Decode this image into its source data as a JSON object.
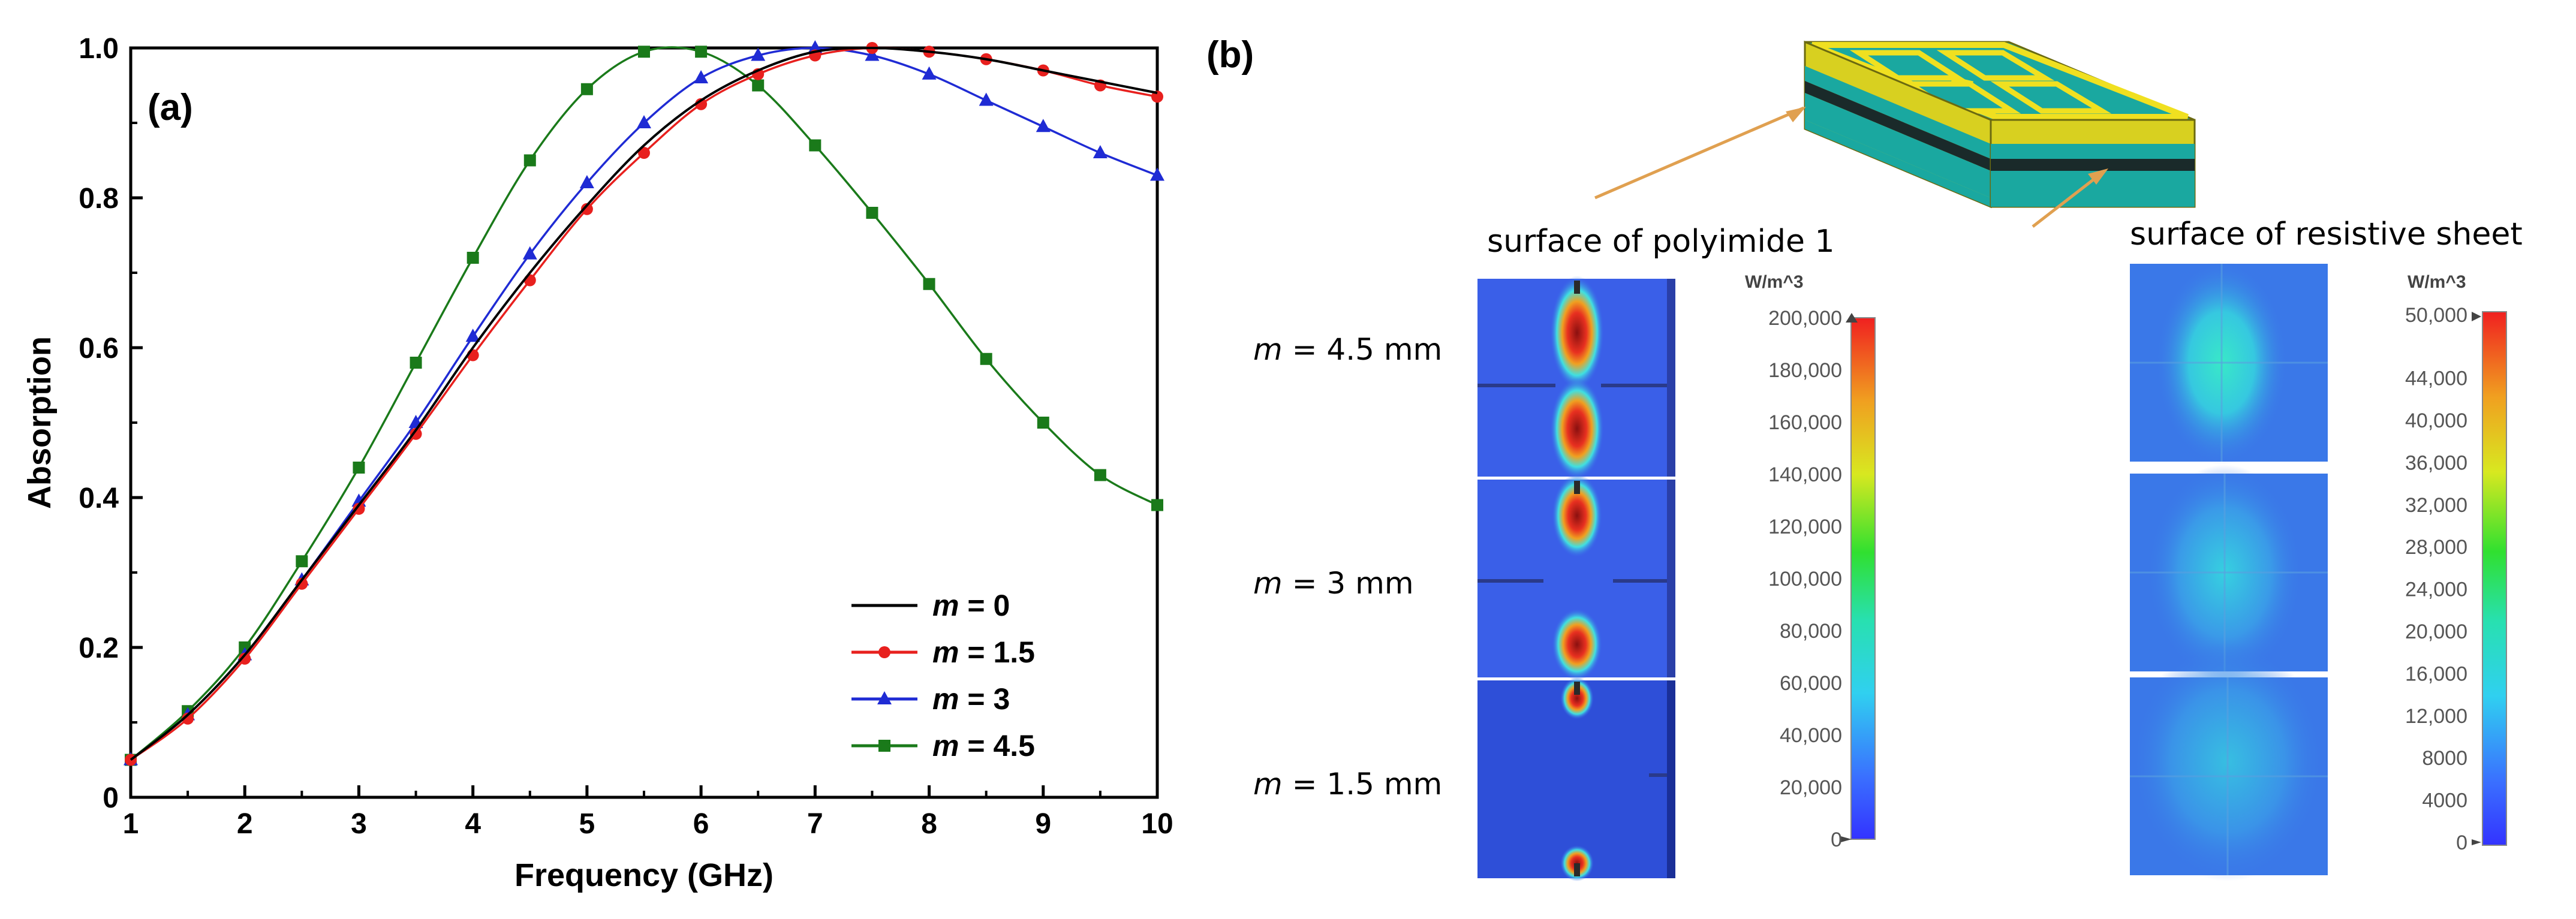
{
  "panel_a": {
    "label": "(a)",
    "chart_data": {
      "type": "line",
      "xlabel": "Frequency (GHz)",
      "ylabel": "Absorption",
      "xlim": [
        1,
        10
      ],
      "ylim": [
        0,
        1.0
      ],
      "x_ticks": [
        1,
        2,
        3,
        4,
        5,
        6,
        7,
        8,
        9,
        10
      ],
      "y_ticks": [
        0,
        0.2,
        0.4,
        0.6,
        0.8,
        1.0
      ],
      "y_tick_labels": [
        "0",
        "0.2",
        "0.4",
        "0.6",
        "0.8",
        "1.0"
      ],
      "grid": false,
      "legend_position": "bottom-right",
      "series": [
        {
          "name": "m = 0",
          "legend_var": "m",
          "legend_val": "= 0",
          "color": "#000000",
          "marker": "none",
          "x": [
            1,
            1.5,
            2,
            2.5,
            3,
            3.5,
            4,
            4.5,
            5,
            5.5,
            6,
            6.5,
            7,
            7.5,
            8,
            8.5,
            9,
            9.5,
            10
          ],
          "y": [
            0.05,
            0.11,
            0.19,
            0.29,
            0.39,
            0.49,
            0.6,
            0.7,
            0.79,
            0.87,
            0.93,
            0.97,
            0.995,
            1.0,
            0.995,
            0.985,
            0.97,
            0.955,
            0.94
          ]
        },
        {
          "name": "m = 1.5",
          "legend_var": "m",
          "legend_val": "= 1.5",
          "color": "#e8201e",
          "marker": "circle",
          "x": [
            1,
            1.5,
            2,
            2.5,
            3,
            3.5,
            4,
            4.5,
            5,
            5.5,
            6,
            6.5,
            7,
            7.5,
            8,
            8.5,
            9,
            9.5,
            10
          ],
          "y": [
            0.05,
            0.105,
            0.185,
            0.285,
            0.385,
            0.485,
            0.59,
            0.69,
            0.785,
            0.86,
            0.925,
            0.965,
            0.99,
            1.0,
            0.995,
            0.985,
            0.97,
            0.95,
            0.935
          ]
        },
        {
          "name": "m = 3",
          "legend_var": "m",
          "legend_val": "= 3",
          "color": "#1f2bd4",
          "marker": "triangle",
          "x": [
            1,
            1.5,
            2,
            2.5,
            3,
            3.5,
            4,
            4.5,
            5,
            5.5,
            6,
            6.5,
            7,
            7.5,
            8,
            8.5,
            9,
            9.5,
            10
          ],
          "y": [
            0.05,
            0.11,
            0.19,
            0.29,
            0.395,
            0.5,
            0.615,
            0.725,
            0.82,
            0.9,
            0.96,
            0.99,
            1.0,
            0.99,
            0.965,
            0.93,
            0.895,
            0.86,
            0.83
          ]
        },
        {
          "name": "m = 4.5",
          "legend_var": "m",
          "legend_val": "= 4.5",
          "color": "#1a7a1a",
          "marker": "square",
          "x": [
            1,
            1.5,
            2,
            2.5,
            3,
            3.5,
            4,
            4.5,
            5,
            5.5,
            6,
            6.5,
            7,
            7.5,
            8,
            8.5,
            9,
            9.5,
            10
          ],
          "y": [
            0.05,
            0.115,
            0.2,
            0.315,
            0.44,
            0.58,
            0.72,
            0.85,
            0.945,
            0.995,
            0.995,
            0.95,
            0.87,
            0.78,
            0.685,
            0.585,
            0.5,
            0.43,
            0.39
          ]
        }
      ]
    }
  },
  "panel_b": {
    "label": "(b)",
    "polyimide_title": "surface of polyimide 1",
    "resistive_title": "surface of resistive sheet",
    "rows": [
      {
        "var": "m",
        "value": "= 4.5 mm"
      },
      {
        "var": "m",
        "value": "= 3 mm"
      },
      {
        "var": "m",
        "value": "= 1.5 mm"
      }
    ],
    "colorbar_left": {
      "unit": "W/m^3",
      "ticks": [
        "200,000",
        "180,000",
        "160,000",
        "140,000",
        "120,000",
        "100,000",
        "80,000",
        "60,000",
        "40,000",
        "20,000",
        "0"
      ]
    },
    "colorbar_right": {
      "unit": "W/m^3",
      "ticks": [
        "50,000",
        "44,000",
        "40,000",
        "36,000",
        "32,000",
        "28,000",
        "24,000",
        "20,000",
        "16,000",
        "12,000",
        "8000",
        "4000",
        "0"
      ],
      "tick_values": [
        50000,
        44000,
        40000,
        36000,
        32000,
        28000,
        24000,
        20000,
        16000,
        12000,
        8000,
        4000,
        0
      ]
    },
    "colors": {
      "field_base": "#3a5fe8",
      "hotspot": "#c0201a",
      "model_copper": "#f0e020",
      "model_dielectric": "#1aa8a0"
    }
  }
}
